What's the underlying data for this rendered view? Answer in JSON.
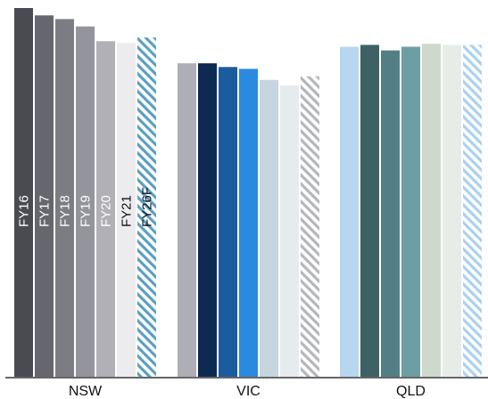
{
  "chart_data": {
    "type": "bar",
    "title": "",
    "xlabel": "",
    "ylabel": "",
    "ylim": [
      0,
      100
    ],
    "categories": [
      "NSW",
      "VIC",
      "QLD"
    ],
    "series_labels": [
      "FY16",
      "FY17",
      "FY18",
      "FY19",
      "FY20",
      "FY21",
      "FY26F"
    ],
    "groups": [
      {
        "category": "NSW",
        "values": [
          100,
          98,
          97,
          95,
          91,
          90.5,
          92
        ],
        "colors": [
          "#4a4a52",
          "#66666e",
          "#7c7c84",
          "#94949c",
          "#b0b0b6",
          "#ececee",
          "#5b9ec4"
        ],
        "label_colors": [
          "#ffffff",
          "#ffffff",
          "#ffffff",
          "#ffffff",
          "#ffffff",
          "#111111",
          "#111111"
        ]
      },
      {
        "category": "VIC",
        "values": [
          85,
          85,
          84,
          83.5,
          80.5,
          79,
          81.5
        ],
        "colors": [
          "#aeafb6",
          "#0d2b52",
          "#1b5c9e",
          "#2a8ae0",
          "#c6d5df",
          "#e6ebee",
          "#b4b6ba"
        ]
      },
      {
        "category": "QLD",
        "values": [
          89.5,
          90,
          88.5,
          89.5,
          90.3,
          90,
          90
        ],
        "colors": [
          "#b8d6f0",
          "#3e6165",
          "#527f85",
          "#6d9ea3",
          "#cfd8cc",
          "#e8ece8",
          "#a9d1f0"
        ]
      }
    ],
    "hatched_series": [
      "FY26F"
    ],
    "grid": false,
    "legend": "none"
  }
}
